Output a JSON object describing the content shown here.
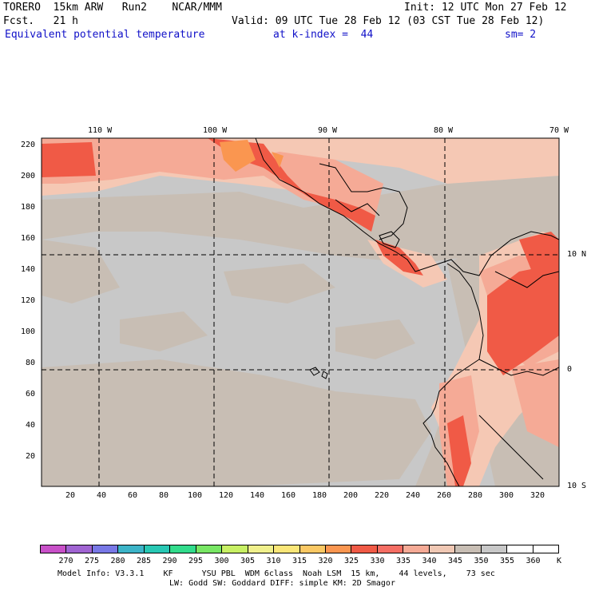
{
  "header": {
    "model": "TORERO  15km ARW   Run2    NCAR/MMM",
    "init": "Init: 12 UTC Mon 27 Feb 12",
    "fcst": "Fcst.   21 h",
    "valid": "Valid: 09 UTC Tue 28 Feb 12 (03 CST Tue 28 Feb 12)",
    "field": "Equivalent potential temperature",
    "level": "at k-index =  44",
    "smooth": "sm= 2"
  },
  "map": {
    "lon_labels": [
      "110 W",
      "100 W",
      "90 W",
      "80 W",
      "70 W"
    ],
    "lat_labels": [
      "10 N",
      "0",
      "10 S"
    ],
    "y_ticks": [
      "220",
      "200",
      "180",
      "160",
      "140",
      "120",
      "100",
      "80",
      "60",
      "40",
      "20"
    ],
    "x_ticks": [
      "20",
      "40",
      "60",
      "80",
      "100",
      "120",
      "140",
      "160",
      "180",
      "200",
      "220",
      "240",
      "260",
      "280",
      "300",
      "320"
    ]
  },
  "colorbar": {
    "labels": [
      "270",
      "275",
      "280",
      "285",
      "290",
      "295",
      "300",
      "305",
      "310",
      "315",
      "320",
      "325",
      "330",
      "335",
      "340",
      "345",
      "350",
      "355",
      "360"
    ],
    "unit": "K",
    "colors": [
      "#c850c8",
      "#a064d2",
      "#7878e6",
      "#3cb4c8",
      "#28c8b4",
      "#32dc8c",
      "#78e664",
      "#c8f064",
      "#f0f08c",
      "#fae678",
      "#fac864",
      "#fa9650",
      "#f05a46",
      "#f56e64",
      "#f5aa96",
      "#f0c8b4",
      "#c8beb4",
      "#c8c8c8",
      "#ffffff",
      "#ffffff"
    ]
  },
  "footer": {
    "line1": "Model Info: V3.3.1    KF      YSU PBL  WDM 6class  Noah LSM  15 km,    44 levels,    73 sec",
    "line2": "LW: Godd SW: Goddard DIFF: simple KM: 2D Smagor"
  }
}
